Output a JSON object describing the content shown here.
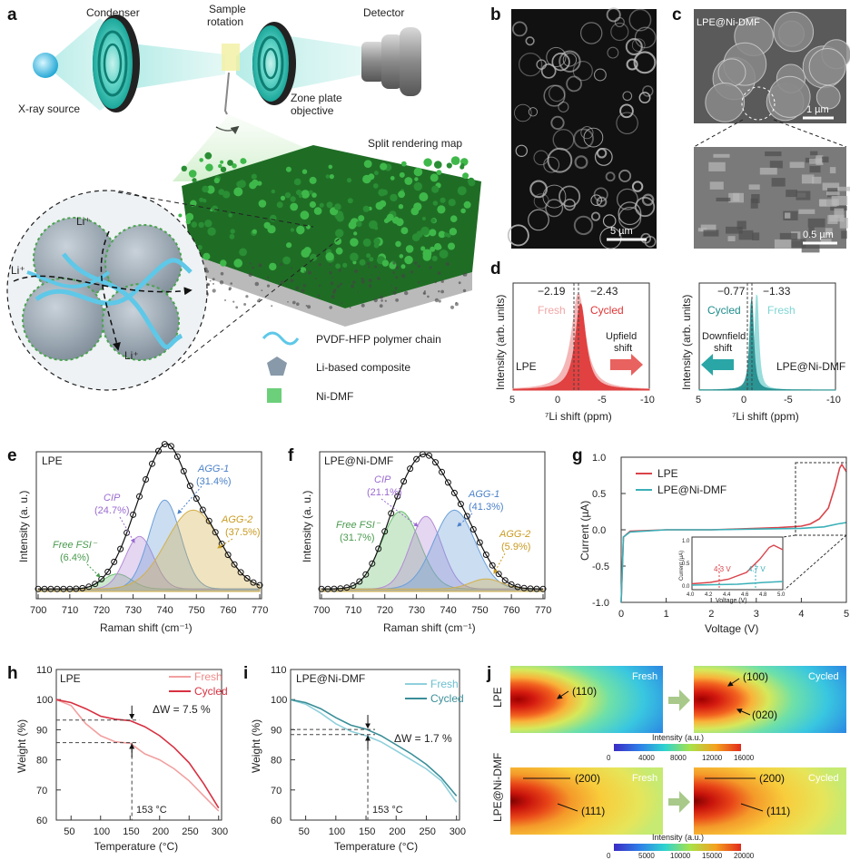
{
  "panel_letters": [
    "a",
    "b",
    "c",
    "d",
    "e",
    "f",
    "g",
    "h",
    "i",
    "j"
  ],
  "a": {
    "xray_source": "X-ray source",
    "condenser": "Condenser",
    "sample_rotation_1": "Sample",
    "sample_rotation_2": "rotation",
    "detector": "Detector",
    "zone_plate_1": "Zone plate",
    "zone_plate_2": "objective",
    "split_map": "Split rendering map",
    "li_ion": "Li⁺",
    "legend": [
      "PVDF-HFP polymer chain",
      "Li-based composite",
      "Ni-DMF"
    ],
    "colors": {
      "ni_dmf": "#2f9e3c",
      "polymer": "#5ec8e8",
      "composite": "#8899aa"
    }
  },
  "b": {
    "scale": "5 µm"
  },
  "c": {
    "title": "LPE@Ni-DMF",
    "scale_top": "1 µm",
    "scale_bottom": "0.5 µm"
  },
  "d": {
    "left": {
      "v1": "−2.19",
      "v2": "−2.43",
      "fresh": "Fresh",
      "cycled": "Cycled",
      "shift_1": "Upfield",
      "shift_2": "shift",
      "sample": "LPE",
      "color_fresh": "#f2a5a5",
      "color_cycled": "#e03535"
    },
    "right": {
      "v1": "−0.77",
      "v2": "−1.33",
      "cycled": "Cycled",
      "fresh": "Fresh",
      "shift_1": "Downfield",
      "shift_2": "shift",
      "sample": "LPE@Ni-DMF",
      "color_fresh": "#7fd4d4",
      "color_cycled": "#1f8c8c"
    },
    "ylabel": "Intensity (arb. units)",
    "xlabel": "⁷Li shift (ppm)",
    "xticks": [
      "5",
      "0",
      "-5",
      "-10"
    ]
  },
  "e": {
    "title": "LPE",
    "ylabel": "Intensity (a. u.)",
    "xlabel": "Raman shift (cm⁻¹)",
    "xticks": [
      "700",
      "710",
      "720",
      "730",
      "740",
      "750",
      "760",
      "770"
    ],
    "peaks": [
      {
        "name": "Free FSI⁻",
        "pct": "(6.4%)"
      },
      {
        "name": "CIP",
        "pct": "(24.7%)"
      },
      {
        "name": "AGG-1",
        "pct": "(31.4%)"
      },
      {
        "name": "AGG-2",
        "pct": "(37.5%)"
      }
    ]
  },
  "f": {
    "title": "LPE@Ni-DMF",
    "ylabel": "Intensity (a. u.)",
    "xlabel": "Raman shift (cm⁻¹)",
    "xticks": [
      "700",
      "710",
      "720",
      "730",
      "740",
      "750",
      "760",
      "770"
    ],
    "peaks": [
      {
        "name": "Free FSI⁻",
        "pct": "(31.7%)"
      },
      {
        "name": "CIP",
        "pct": "(21.1%)"
      },
      {
        "name": "AGG-1",
        "pct": "(41.3%)"
      },
      {
        "name": "AGG-2",
        "pct": "(5.9%)"
      }
    ]
  },
  "g": {
    "legend": [
      "LPE",
      "LPE@Ni-DMF"
    ],
    "ylabel": "Current (µA)",
    "xlabel": "Voltage (V)",
    "xticks": [
      "0",
      "1",
      "2",
      "3",
      "4",
      "5"
    ],
    "yticks": [
      "1.0",
      "0.5",
      "0.0",
      "-0.5",
      "-1.0"
    ],
    "inset": {
      "v1": "4.3 V",
      "v2": "4.7 V",
      "xlabel": "Voltage (V)",
      "ylabel": "Current (µA)",
      "xticks": [
        "4.0",
        "4.2",
        "4.4",
        "4.6",
        "4.8",
        "5.0"
      ],
      "yticks": [
        "1.0",
        "0.5",
        "0.0"
      ]
    },
    "colors": {
      "lpe": "#d9434a",
      "ni": "#3bb0b8"
    }
  },
  "h": {
    "title": "LPE",
    "legend": [
      "Fresh",
      "Cycled"
    ],
    "dw": "ΔW = 7.5 %",
    "temp": "153 °C",
    "ylabel": "Weight (%)",
    "xlabel": "Temperature (°C)",
    "xticks": [
      "50",
      "100",
      "150",
      "200",
      "250",
      "300"
    ],
    "yticks": [
      "110",
      "100",
      "90",
      "80",
      "70",
      "60"
    ]
  },
  "i": {
    "title": "LPE@Ni-DMF",
    "legend": [
      "Fresh",
      "Cycled"
    ],
    "dw": "ΔW = 1.7 %",
    "temp": "153 °C",
    "ylabel": "Weight (%)",
    "xlabel": "Temperature (°C)",
    "xticks": [
      "50",
      "100",
      "150",
      "200",
      "250",
      "300"
    ],
    "yticks": [
      "110",
      "100",
      "90",
      "80",
      "70",
      "60"
    ]
  },
  "j": {
    "row1": "LPE",
    "row2": "LPE@Ni-DMF",
    "fresh": "Fresh",
    "cycled": "Cycled",
    "peaks_lpe_fresh": [
      "(110)"
    ],
    "peaks_lpe_cycled": [
      "(100)",
      "(020)"
    ],
    "peaks_ni": [
      "(200)",
      "(111)"
    ],
    "cbar_label": "Intensity (a.u.)",
    "cbar1": [
      "0",
      "4000",
      "8000",
      "12000",
      "16000"
    ],
    "cbar2": [
      "0",
      "5000",
      "10000",
      "15000",
      "20000"
    ]
  },
  "chart_data": [
    {
      "type": "line",
      "panel": "d-left",
      "xlabel": "⁷Li shift (ppm)",
      "ylabel": "Intensity (arb. units)",
      "xlim": [
        5,
        -10
      ],
      "series": [
        {
          "name": "Fresh",
          "peak_x": -2.19
        },
        {
          "name": "Cycled",
          "peak_x": -2.43
        }
      ]
    },
    {
      "type": "line",
      "panel": "d-right",
      "xlabel": "⁷Li shift (ppm)",
      "ylabel": "Intensity (arb. units)",
      "xlim": [
        5,
        -10
      ],
      "series": [
        {
          "name": "Cycled",
          "peak_x": -0.77
        },
        {
          "name": "Fresh",
          "peak_x": -1.33
        }
      ]
    },
    {
      "type": "area",
      "panel": "e",
      "xlabel": "Raman shift (cm⁻¹)",
      "xlim": [
        700,
        770
      ],
      "series": [
        {
          "name": "Free FSI⁻",
          "center": 725,
          "amp": 0.12,
          "width": 4.5,
          "color": "#6cc070"
        },
        {
          "name": "CIP",
          "center": 732,
          "amp": 0.42,
          "width": 4.5,
          "color": "#b48ad6"
        },
        {
          "name": "AGG-1",
          "center": 740,
          "amp": 0.71,
          "width": 5.0,
          "color": "#6b9fd8"
        },
        {
          "name": "AGG-2",
          "center": 749,
          "amp": 0.63,
          "width": 8.5,
          "color": "#d4b04a"
        }
      ]
    },
    {
      "type": "area",
      "panel": "f",
      "xlabel": "Raman shift (cm⁻¹)",
      "xlim": [
        700,
        770
      ],
      "series": [
        {
          "name": "Free FSI⁻",
          "center": 725,
          "amp": 0.62,
          "width": 6.0,
          "color": "#6cc070"
        },
        {
          "name": "CIP",
          "center": 733,
          "amp": 0.58,
          "width": 5.0,
          "color": "#b48ad6"
        },
        {
          "name": "AGG-1",
          "center": 742,
          "amp": 0.63,
          "width": 6.5,
          "color": "#6b9fd8"
        },
        {
          "name": "AGG-2",
          "center": 752,
          "amp": 0.08,
          "width": 5.0,
          "color": "#d4b04a"
        }
      ]
    },
    {
      "type": "line",
      "panel": "g",
      "xlabel": "Voltage (V)",
      "ylabel": "Current (µA)",
      "xlim": [
        0,
        5
      ],
      "ylim": [
        -1,
        1
      ],
      "series": [
        {
          "name": "LPE",
          "x": [
            0,
            0.05,
            0.2,
            1,
            2,
            3,
            3.5,
            4.0,
            4.2,
            4.4,
            4.6,
            4.75,
            4.85,
            4.9,
            5.0
          ],
          "y": [
            -1,
            -0.1,
            -0.02,
            0.0,
            0.0,
            0.02,
            0.03,
            0.05,
            0.08,
            0.15,
            0.3,
            0.6,
            0.85,
            0.9,
            0.8
          ]
        },
        {
          "name": "LPE@Ni-DMF",
          "x": [
            0,
            0.05,
            0.2,
            1,
            2,
            3,
            4,
            4.5,
            4.8,
            5.0
          ],
          "y": [
            -1,
            -0.1,
            -0.03,
            0.0,
            0.0,
            0.01,
            0.02,
            0.04,
            0.08,
            0.1
          ]
        }
      ]
    },
    {
      "type": "line",
      "panel": "h",
      "xlabel": "Temperature (°C)",
      "ylabel": "Weight (%)",
      "xlim": [
        25,
        305
      ],
      "ylim": [
        60,
        110
      ],
      "series": [
        {
          "name": "Fresh",
          "x": [
            25,
            50,
            75,
            100,
            125,
            150,
            175,
            200,
            225,
            250,
            275,
            300
          ],
          "y": [
            100,
            98,
            92,
            88,
            86,
            85.5,
            82,
            80,
            77,
            73,
            68,
            63
          ]
        },
        {
          "name": "Cycled",
          "x": [
            25,
            50,
            75,
            100,
            125,
            150,
            175,
            200,
            225,
            250,
            275,
            300
          ],
          "y": [
            100,
            99,
            97,
            94.5,
            93.5,
            93,
            91,
            88,
            84,
            79,
            72,
            64
          ]
        }
      ]
    },
    {
      "type": "line",
      "panel": "i",
      "xlabel": "Temperature (°C)",
      "ylabel": "Weight (%)",
      "xlim": [
        25,
        305
      ],
      "ylim": [
        60,
        110
      ],
      "series": [
        {
          "name": "Fresh",
          "x": [
            25,
            50,
            75,
            100,
            125,
            150,
            175,
            200,
            225,
            250,
            275,
            300
          ],
          "y": [
            100,
            98.5,
            95.5,
            92,
            89.5,
            88,
            86,
            83,
            80,
            77,
            73,
            66
          ]
        },
        {
          "name": "Cycled",
          "x": [
            25,
            50,
            75,
            100,
            125,
            150,
            175,
            200,
            225,
            250,
            275,
            300
          ],
          "y": [
            100,
            99,
            97,
            94,
            91.5,
            90.2,
            88,
            85,
            82,
            78.5,
            74,
            68
          ]
        }
      ]
    }
  ]
}
